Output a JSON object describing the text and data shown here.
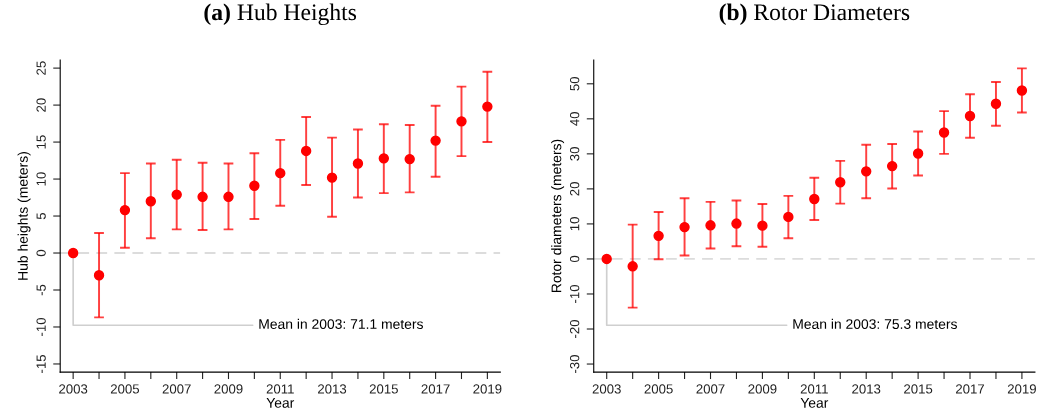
{
  "chart_data": [
    {
      "type": "scatter",
      "title": "(a) Hub Heights",
      "xlabel": "Year",
      "ylabel": "Hub heights (meters)",
      "marker": "circle",
      "grid": false,
      "x": [
        2003,
        2004,
        2005,
        2006,
        2007,
        2008,
        2009,
        2010,
        2011,
        2012,
        2013,
        2014,
        2015,
        2016,
        2017,
        2018,
        2019
      ],
      "series": [
        {
          "color": "#ff0000",
          "values": [
            0,
            -3.0,
            5.8,
            7.0,
            7.9,
            7.6,
            7.6,
            9.1,
            10.8,
            13.8,
            10.2,
            12.1,
            12.8,
            12.7,
            15.2,
            17.8,
            19.8
          ],
          "errors": [
            null,
            [
              -8.7,
              2.7
            ],
            [
              0.7,
              10.8
            ],
            [
              2.0,
              12.1
            ],
            [
              3.2,
              12.6
            ],
            [
              3.1,
              12.2
            ],
            [
              3.2,
              12.1
            ],
            [
              4.6,
              13.5
            ],
            [
              6.4,
              15.3
            ],
            [
              9.2,
              18.4
            ],
            [
              4.9,
              15.6
            ],
            [
              7.5,
              16.7
            ],
            [
              8.1,
              17.4
            ],
            [
              8.2,
              17.3
            ],
            [
              10.3,
              19.9
            ],
            [
              13.1,
              22.5
            ],
            [
              15.0,
              24.5
            ]
          ]
        }
      ],
      "xlim": [
        2002.5,
        2019.5
      ],
      "ylim": [
        -16.1,
        26.1
      ],
      "xticks": [
        2003,
        {
          "value": 2004,
          "label": null
        },
        2005,
        {
          "value": 2006,
          "label": null
        },
        2007,
        {
          "value": 2008,
          "label": null
        },
        2009,
        {
          "value": 2010,
          "label": null
        },
        2011,
        {
          "value": 2012,
          "label": null
        },
        2013,
        {
          "value": 2014,
          "label": null
        },
        2015,
        {
          "value": 2016,
          "label": null
        },
        2017,
        {
          "value": 2018,
          "label": null
        },
        2019
      ],
      "yticks": [
        -15,
        -10,
        -5,
        0,
        5,
        10,
        15,
        20,
        25
      ],
      "ref_lines": [
        {
          "axis": "y",
          "value": 0,
          "color": "#dcdcdc",
          "line_style": "dashed"
        }
      ],
      "annotations": [
        {
          "text": "Mean in 2003: 71.1 meters",
          "x": 2003,
          "y": 0
        }
      ]
    },
    {
      "type": "scatter",
      "title": "(b) Rotor Diameters",
      "xlabel": "Year",
      "ylabel": "Rotor diameters (meters)",
      "marker": "circle",
      "grid": false,
      "x": [
        2003,
        2004,
        2005,
        2006,
        2007,
        2008,
        2009,
        2010,
        2011,
        2012,
        2013,
        2014,
        2015,
        2016,
        2017,
        2018,
        2019
      ],
      "series": [
        {
          "color": "#ff0000",
          "values": [
            0,
            -2.1,
            6.6,
            9.1,
            9.6,
            10.1,
            9.5,
            12.0,
            17.1,
            21.9,
            25.0,
            26.5,
            30.1,
            36.1,
            40.8,
            44.3,
            48.1
          ],
          "errors": [
            null,
            [
              -13.9,
              9.8
            ],
            [
              -0.1,
              13.4
            ],
            [
              1.0,
              17.3
            ],
            [
              3.0,
              16.3
            ],
            [
              3.6,
              16.7
            ],
            [
              3.5,
              15.7
            ],
            [
              5.9,
              18.0
            ],
            [
              11.1,
              23.2
            ],
            [
              15.8,
              28.0
            ],
            [
              17.3,
              32.6
            ],
            [
              20.1,
              32.8
            ],
            [
              23.8,
              36.4
            ],
            [
              30.0,
              42.2
            ],
            [
              34.6,
              47.0
            ],
            [
              38.0,
              50.5
            ],
            [
              41.8,
              54.4
            ]
          ]
        }
      ],
      "xlim": [
        2002.5,
        2019.5
      ],
      "ylim": [
        -32.3,
        56.8
      ],
      "xticks": [
        2003,
        {
          "value": 2004,
          "label": null
        },
        2005,
        {
          "value": 2006,
          "label": null
        },
        2007,
        {
          "value": 2008,
          "label": null
        },
        2009,
        {
          "value": 2010,
          "label": null
        },
        2011,
        {
          "value": 2012,
          "label": null
        },
        2013,
        {
          "value": 2014,
          "label": null
        },
        2015,
        {
          "value": 2016,
          "label": null
        },
        2017,
        {
          "value": 2018,
          "label": null
        },
        2019
      ],
      "yticks": [
        -30,
        -20,
        -10,
        0,
        10,
        20,
        30,
        40,
        50
      ],
      "ref_lines": [
        {
          "axis": "y",
          "value": 0,
          "color": "#dcdcdc",
          "line_style": "dashed"
        }
      ],
      "annotations": [
        {
          "text": "Mean in 2003: 75.3 meters",
          "x": 2003,
          "y": 0
        }
      ]
    }
  ]
}
